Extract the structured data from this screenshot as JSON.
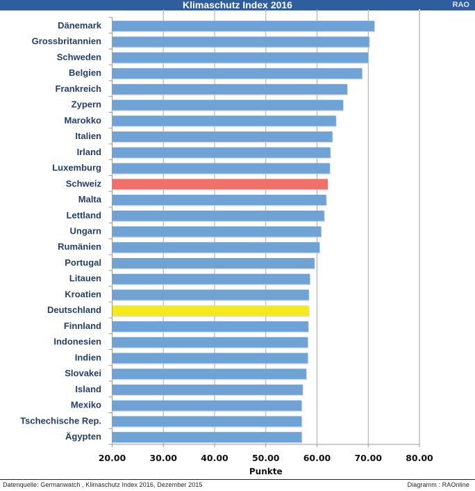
{
  "header": {
    "title": "Klimaschutz Index 2016",
    "brand": "RAO"
  },
  "footer": {
    "source": "Datenquelle: Germanwatch , Klimaschutz Index 2016, Dezember 2015",
    "credit": "Diagramm : RAOnline"
  },
  "colors": {
    "header": "#2e5e9e",
    "bar_default": "#6fa3d6",
    "bar_schweiz": "#f2706a",
    "bar_deutschland": "#f2ea1c",
    "label": "#243f66"
  },
  "chart_data": {
    "type": "bar",
    "orientation": "horizontal",
    "title": "Klimaschutz Index 2016",
    "xlabel": "Punkte",
    "ylabel": "",
    "xlim": [
      20,
      80
    ],
    "xticks": [
      20,
      30,
      40,
      50,
      60,
      70,
      80
    ],
    "xtick_labels": [
      "20.00",
      "30.00",
      "40.00",
      "50.00",
      "60.00",
      "70.00",
      "80.00"
    ],
    "grid": "vertical",
    "legend": "none",
    "categories": [
      "Dänemark",
      "Grossbritannien",
      "Schweden",
      "Belgien",
      "Frankreich",
      "Zypern",
      "Marokko",
      "Italien",
      "Irland",
      "Luxemburg",
      "Schweiz",
      "Malta",
      "Lettland",
      "Ungarn",
      "Rumänien",
      "Portugal",
      "Litauen",
      "Kroatien",
      "Deutschland",
      "Finnland",
      "Indonesien",
      "Indien",
      "Slovakei",
      "Island",
      "Mexiko",
      "Tschechische Rep.",
      "Ägypten"
    ],
    "values": [
      71.2,
      70.2,
      70.0,
      68.8,
      65.9,
      65.1,
      63.7,
      63.0,
      62.6,
      62.5,
      62.1,
      61.8,
      61.4,
      60.8,
      60.5,
      59.5,
      58.6,
      58.4,
      58.4,
      58.3,
      58.2,
      58.2,
      57.9,
      57.2,
      57.0,
      57.0,
      57.0
    ],
    "highlights": {
      "Schweiz": "#f2706a",
      "Deutschland": "#f2ea1c"
    }
  }
}
